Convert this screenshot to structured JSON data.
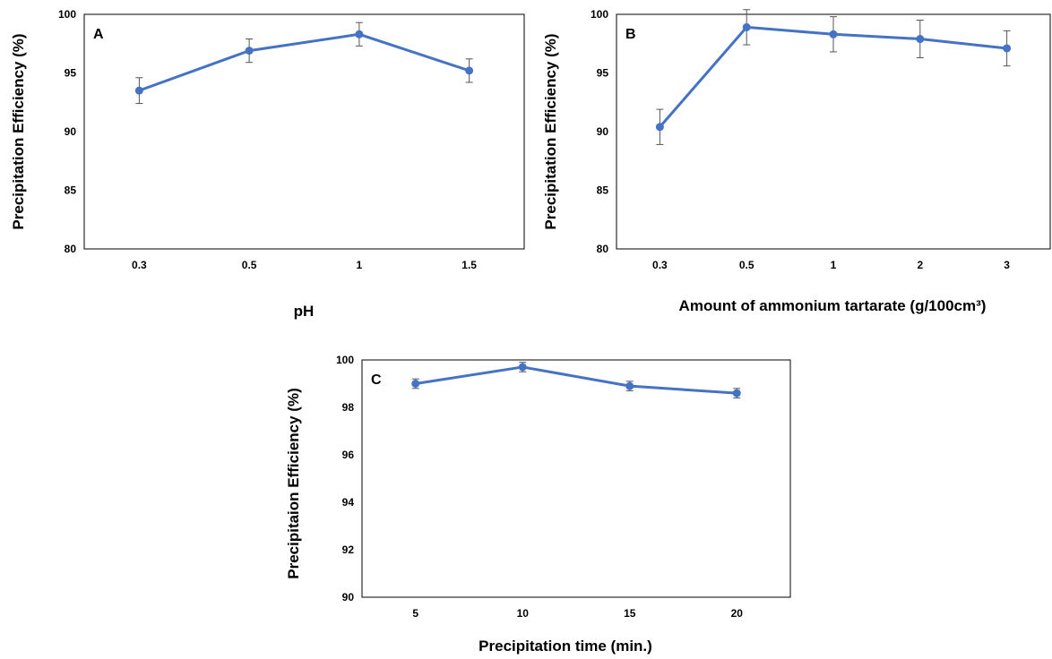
{
  "chart_data": [
    {
      "panel": "A",
      "type": "line",
      "categories": [
        "0.3",
        "0.5",
        "1",
        "1.5"
      ],
      "series": [
        {
          "values": [
            93.5,
            96.9,
            98.3,
            95.2
          ],
          "errors": [
            1.1,
            1.0,
            1.0,
            1.0
          ]
        }
      ],
      "xlabel": "pH",
      "ylabel": "Precipitation Efficiency (%)",
      "ylim": [
        80,
        100
      ],
      "yticks": [
        "80",
        "85",
        "90",
        "95",
        "100"
      ],
      "grid": false,
      "color": "#4472C4"
    },
    {
      "panel": "B",
      "type": "line",
      "categories": [
        "0.3",
        "0.5",
        "1",
        "2",
        "3"
      ],
      "series": [
        {
          "values": [
            90.4,
            98.9,
            98.3,
            97.9,
            97.1
          ],
          "errors": [
            1.5,
            1.5,
            1.5,
            1.6,
            1.5
          ]
        }
      ],
      "xlabel": "Amount of ammonium tartarate (g/100cm³)",
      "ylabel": "Precipitation Efficiency (%)",
      "ylim": [
        80,
        100
      ],
      "yticks": [
        "80",
        "85",
        "90",
        "95",
        "100"
      ],
      "grid": false,
      "color": "#4472C4"
    },
    {
      "panel": "C",
      "type": "line",
      "categories": [
        "5",
        "10",
        "15",
        "20"
      ],
      "series": [
        {
          "values": [
            99.0,
            99.7,
            98.9,
            98.6
          ],
          "errors": [
            0.2,
            0.2,
            0.2,
            0.2
          ]
        }
      ],
      "xlabel": "Precipitation time (min.)",
      "ylabel": "Precipitaion Efficiency (%)",
      "ylim": [
        90,
        100
      ],
      "yticks": [
        "90",
        "92",
        "94",
        "96",
        "98",
        "100"
      ],
      "grid": false,
      "color": "#4472C4"
    }
  ]
}
